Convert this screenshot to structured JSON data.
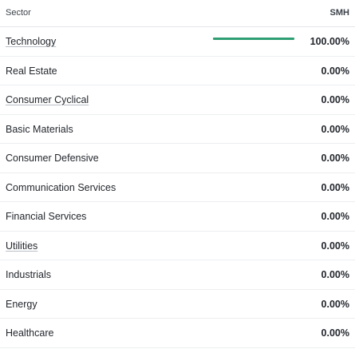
{
  "header": {
    "sector_label": "Sector",
    "fund_label": "SMH"
  },
  "accent_color": "#2e9e73",
  "rows": [
    {
      "sector": "Technology",
      "value": "100.00%",
      "weight": 1.0
    },
    {
      "sector": "Real Estate",
      "value": "0.00%",
      "weight": 0.0
    },
    {
      "sector": "Consumer Cyclical",
      "value": "0.00%",
      "weight": 0.0
    },
    {
      "sector": "Basic Materials",
      "value": "0.00%",
      "weight": 0.0
    },
    {
      "sector": "Consumer Defensive",
      "value": "0.00%",
      "weight": 0.0
    },
    {
      "sector": "Communication Services",
      "value": "0.00%",
      "weight": 0.0
    },
    {
      "sector": "Financial Services",
      "value": "0.00%",
      "weight": 0.0
    },
    {
      "sector": "Utilities",
      "value": "0.00%",
      "weight": 0.0
    },
    {
      "sector": "Industrials",
      "value": "0.00%",
      "weight": 0.0
    },
    {
      "sector": "Energy",
      "value": "0.00%",
      "weight": 0.0
    },
    {
      "sector": "Healthcare",
      "value": "0.00%",
      "weight": 0.0
    }
  ]
}
